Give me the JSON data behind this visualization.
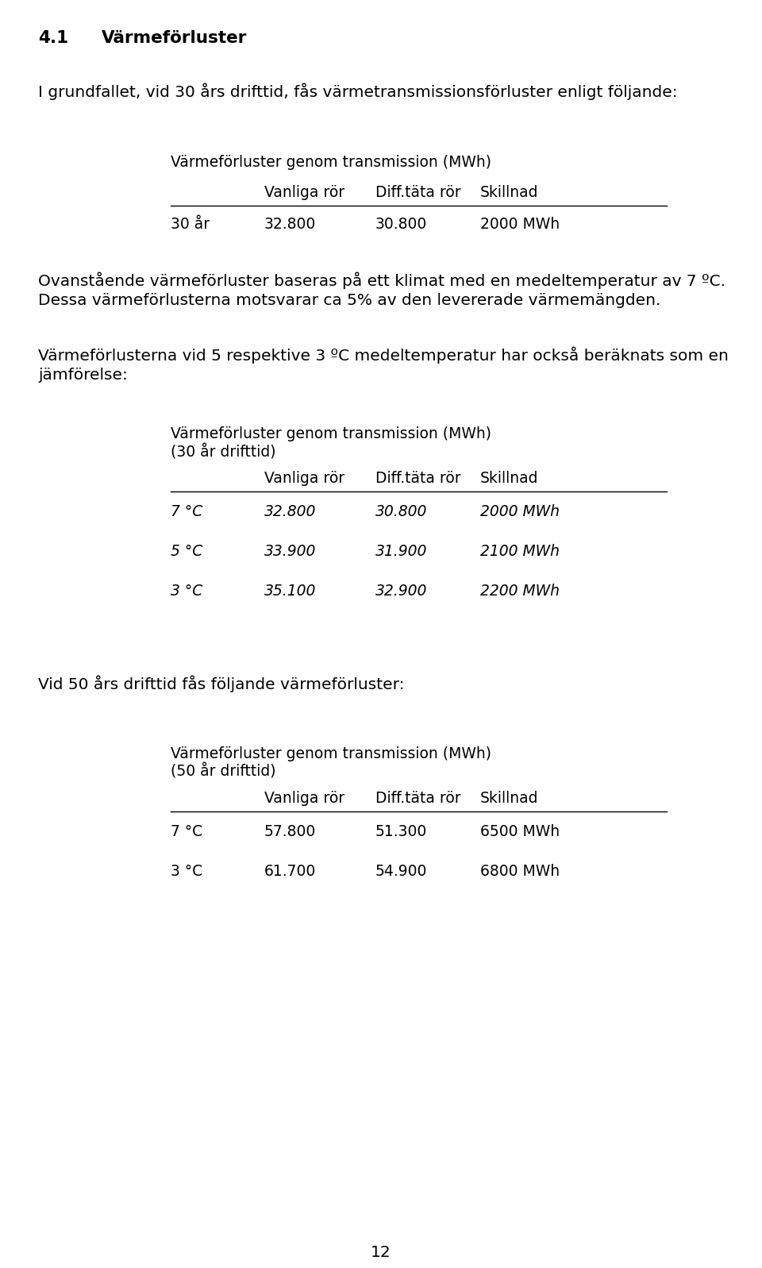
{
  "section_number": "4.1",
  "section_title": "VärmeFörluster",
  "section_title2": "Värmeförluster",
  "para1": "I grundfallet, vid 30 års drifttid, fås värmetransmissionsförluster enligt följande:",
  "table1_title": "VärmeFörluster genom transmission (MWh)",
  "table1_title2": "Värmeförluster genom transmission (MWh)",
  "table1_headers": [
    "Vanliga rör",
    "Diff.täta rör",
    "Skillnad"
  ],
  "table1_rows": [
    [
      "30 år",
      "32.800",
      "30.800",
      "2000 MWh"
    ]
  ],
  "para2a": "Ovanstående värmeFörluster baseras på ett klimat med en medeltemperatur av 7 ºC.",
  "para2a2": "Ovanstående värmeförluster baseras på ett klimat med en medeltemperatur av 7 ºC.",
  "para2b": "Dessa värmeFörlusterna motsvarar ca 5% av den levererade värmemängden.",
  "para2b2": "Dessa värmeförlusterna motsvarar ca 5% av den levererade värmemängden.",
  "para3_line1": "VärmeFörlusterna vid 5 respektive 3 ºC medeltemperatur har också beräknats som en",
  "para3_line1b": "Värmeförlusterna vid 5 respektive 3 ºC medeltemperatur har också beräknats som en",
  "para3_line2": "jämFörelse:",
  "para3_line2b": "jämförelse:",
  "table2_title_line1": "VärmeFörluster genom transmission (MWh)",
  "table2_title_line1b": "Värmeförluster genom transmission (MWh)",
  "table2_title_line2": "(30 år drifttid)",
  "table2_title_line2b": "(30 år drifttid)",
  "table2_headers": [
    "Vanliga rör",
    "Diff.täta rör",
    "Skillnad"
  ],
  "table2_rows": [
    [
      "7 °C",
      "32.800",
      "30.800",
      "2000 MWh"
    ],
    [
      "5 °C",
      "33.900",
      "31.900",
      "2100 MWh"
    ],
    [
      "3 °C",
      "35.100",
      "32.900",
      "2200 MWh"
    ]
  ],
  "para4": "Vid 50 års drifttid fås följande värmeFörluster:",
  "para4b": "Vid 50 års drifttid fås följande värmeförluster:",
  "table3_title_line1": "VärmeFörluster genom transmission (MWh)",
  "table3_title_line1b": "Värmeförluster genom transmission (MWh)",
  "table3_title_line2": "(50 år drifttid)",
  "table3_title_line2b": "(50 år drifttid)",
  "table3_headers": [
    "Vanliga rör",
    "Diff.täta rör",
    "Skillnad"
  ],
  "table3_rows": [
    [
      "7 °C",
      "57.800",
      "51.300",
      "6500 MWh"
    ],
    [
      "3 °C",
      "61.700",
      "54.900",
      "6800 MWh"
    ]
  ],
  "page_number": "12",
  "bg_color": "#ffffff",
  "text_color": "#000000",
  "fs_heading": 15.5,
  "fs_body": 14.5,
  "fs_table": 13.5
}
